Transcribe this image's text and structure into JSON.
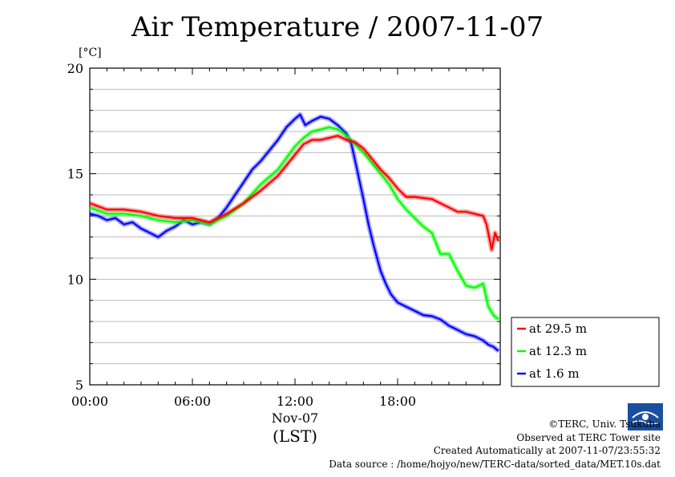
{
  "page": {
    "title": "Air Temperature / 2007-11-07",
    "unit_label": "[°C]",
    "credits": [
      "©TERC, Univ. Tsukuba",
      "Observed at TERC Tower site",
      "Created Automatically at 2007-11-07/23:55:32",
      "Data source : /home/hojyo/new/TERC-data/sorted_data/MET.10s.dat"
    ],
    "logo_text": "TERC"
  },
  "chart_data": {
    "type": "line",
    "title": "Air Temperature / 2007-11-07",
    "ylabel": "[°C]",
    "xlabel": "(LST)",
    "x_date_label": "Nov-07",
    "xlim": [
      0,
      24
    ],
    "ylim": [
      5,
      20
    ],
    "x_tick_labels": [
      "00:00",
      "06:00",
      "12:00",
      "18:00"
    ],
    "x_ticks": [
      0,
      6,
      12,
      18
    ],
    "y_ticks": [
      5,
      10,
      15,
      20
    ],
    "grid": true,
    "legend_position": "right",
    "series": [
      {
        "name": "at 29.5 m",
        "color": "#ff0000",
        "x": [
          0,
          1,
          2,
          3,
          4,
          5,
          6,
          7,
          8,
          9,
          10,
          11,
          12,
          12.5,
          13,
          13.5,
          14,
          14.5,
          15,
          15.5,
          16,
          16.5,
          17,
          17.5,
          18,
          18.5,
          19,
          19.5,
          20,
          20.5,
          21,
          21.5,
          22,
          22.5,
          23,
          23.2,
          23.5,
          23.7,
          23.9
        ],
        "y": [
          13.6,
          13.3,
          13.3,
          13.2,
          13.0,
          12.9,
          12.9,
          12.7,
          13.1,
          13.6,
          14.2,
          14.9,
          15.9,
          16.4,
          16.6,
          16.6,
          16.7,
          16.8,
          16.6,
          16.5,
          16.2,
          15.7,
          15.2,
          14.8,
          14.3,
          13.9,
          13.9,
          13.85,
          13.8,
          13.6,
          13.4,
          13.2,
          13.2,
          13.1,
          13.0,
          12.6,
          11.4,
          12.2,
          11.8
        ]
      },
      {
        "name": "at 12.3 m",
        "color": "#00ff00",
        "x": [
          0,
          1,
          2,
          3,
          4,
          5,
          6,
          7,
          8,
          9,
          10,
          11,
          12,
          12.5,
          13,
          13.5,
          14,
          14.5,
          15,
          15.5,
          16,
          16.5,
          17,
          17.5,
          18,
          18.5,
          19,
          19.5,
          20,
          20.5,
          21,
          21.5,
          22,
          22.5,
          23,
          23.3,
          23.6,
          23.9
        ],
        "y": [
          13.4,
          13.1,
          13.1,
          13.0,
          12.8,
          12.7,
          12.8,
          12.6,
          13.0,
          13.6,
          14.5,
          15.2,
          16.3,
          16.7,
          17.0,
          17.1,
          17.2,
          17.1,
          16.8,
          16.4,
          16.0,
          15.5,
          15.0,
          14.5,
          13.8,
          13.3,
          12.9,
          12.5,
          12.2,
          11.2,
          11.2,
          10.4,
          9.7,
          9.6,
          9.8,
          8.7,
          8.3,
          8.1
        ]
      },
      {
        "name": "at 1.6 m",
        "color": "#0000ff",
        "x": [
          0,
          0.5,
          1,
          1.5,
          2,
          2.5,
          3,
          3.5,
          4,
          4.5,
          5,
          5.5,
          6,
          6.5,
          7,
          7.5,
          8,
          8.5,
          9,
          9.5,
          10,
          10.5,
          11,
          11.5,
          12,
          12.3,
          12.6,
          13,
          13.5,
          14,
          14.5,
          15,
          15.3,
          15.6,
          16,
          16.3,
          16.6,
          17,
          17.3,
          17.6,
          18,
          18.5,
          19,
          19.5,
          20,
          20.5,
          21,
          21.5,
          22,
          22.5,
          23,
          23.3,
          23.6,
          23.9
        ],
        "y": [
          13.1,
          13.0,
          12.8,
          12.9,
          12.6,
          12.7,
          12.4,
          12.2,
          12.0,
          12.3,
          12.5,
          12.8,
          12.6,
          12.7,
          12.6,
          12.9,
          13.4,
          14.0,
          14.6,
          15.2,
          15.6,
          16.1,
          16.6,
          17.2,
          17.6,
          17.8,
          17.3,
          17.5,
          17.7,
          17.6,
          17.3,
          16.9,
          16.4,
          15.3,
          13.8,
          12.6,
          11.6,
          10.4,
          9.8,
          9.3,
          8.9,
          8.7,
          8.5,
          8.3,
          8.25,
          8.1,
          7.8,
          7.6,
          7.4,
          7.3,
          7.1,
          6.9,
          6.8,
          6.6
        ]
      }
    ]
  }
}
